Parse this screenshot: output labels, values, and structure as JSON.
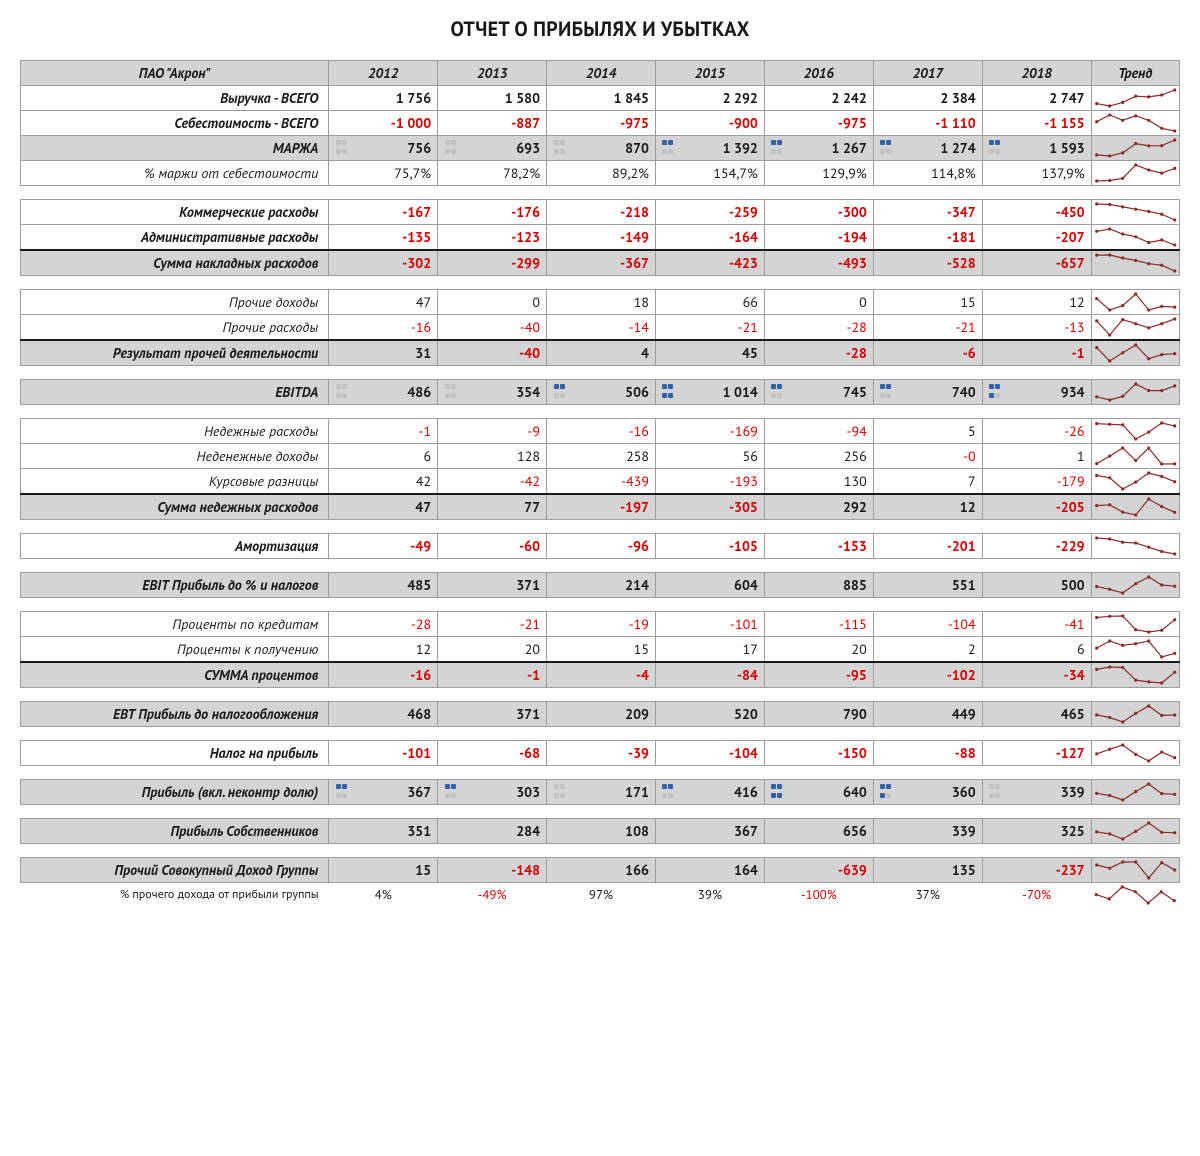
{
  "title": "ОТЧЕТ О ПРИБЫЛЯХ И УБЫТКАХ",
  "company": "ПАО \"Акрон\"",
  "years": [
    "2012",
    "2013",
    "2014",
    "2015",
    "2016",
    "2017",
    "2018"
  ],
  "trend_label": "Тренд",
  "colors": {
    "header_bg": "#d4d4d4",
    "border": "#9c9c9c",
    "negative": "#d40000",
    "spark_line": "#8a2a2a",
    "spark_dot": "#8a2a2a",
    "dot_on": "#3263a8",
    "dot_off": "#c2c2c2"
  },
  "dot_patterns": {
    "marzha": [
      "0000",
      "0000",
      "0000",
      "1100",
      "1100",
      "1100",
      "1100"
    ],
    "ebitda": [
      "0000",
      "0000",
      "1100",
      "1111",
      "1100",
      "1100",
      "1110"
    ],
    "pribyl": [
      "1100",
      "1100",
      "0000",
      "1100",
      "1111",
      "1110",
      "0000"
    ]
  },
  "rows": [
    {
      "type": "header"
    },
    {
      "type": "data",
      "label": "Выручка - ВСЕГО",
      "bold": true,
      "vals": [
        "1 756",
        "1 580",
        "1 845",
        "2 292",
        "2 242",
        "2 384",
        "2 747"
      ],
      "spark": [
        1756,
        1580,
        1845,
        2292,
        2242,
        2384,
        2747
      ]
    },
    {
      "type": "data",
      "label": "Себестоимость - ВСЕГО",
      "bold": true,
      "vals": [
        "-1 000",
        "-887",
        "-975",
        "-900",
        "-975",
        "-1 110",
        "-1 155"
      ],
      "spark": [
        -1000,
        -887,
        -975,
        -900,
        -975,
        -1110,
        -1155
      ]
    },
    {
      "type": "data",
      "label": "МАРЖА",
      "bold": true,
      "grey": true,
      "dots": "marzha",
      "vals": [
        "756",
        "693",
        "870",
        "1 392",
        "1 267",
        "1 274",
        "1 593"
      ],
      "spark": [
        756,
        693,
        870,
        1392,
        1267,
        1274,
        1593
      ]
    },
    {
      "type": "data",
      "label": "% маржи от себестоимости",
      "vals": [
        "75,7%",
        "78,2%",
        "89,2%",
        "154,7%",
        "129,9%",
        "114,8%",
        "137,9%"
      ],
      "spark": [
        75.7,
        78.2,
        89.2,
        154.7,
        129.9,
        114.8,
        137.9
      ]
    },
    {
      "type": "spacer"
    },
    {
      "type": "data",
      "label": "Коммерческие расходы",
      "bold": true,
      "vals": [
        "-167",
        "-176",
        "-218",
        "-259",
        "-300",
        "-347",
        "-450"
      ],
      "spark": [
        -167,
        -176,
        -218,
        -259,
        -300,
        -347,
        -450
      ]
    },
    {
      "type": "data",
      "label": "Административные расходы",
      "bold": true,
      "vals": [
        "-135",
        "-123",
        "-149",
        "-164",
        "-194",
        "-181",
        "-207"
      ],
      "spark": [
        -135,
        -123,
        -149,
        -164,
        -194,
        -181,
        -207
      ]
    },
    {
      "type": "data",
      "label": "Сумма накладных расходов",
      "bold": true,
      "grey": true,
      "thick": true,
      "vals": [
        "-302",
        "-299",
        "-367",
        "-423",
        "-493",
        "-528",
        "-657"
      ],
      "spark": [
        -302,
        -299,
        -367,
        -423,
        -493,
        -528,
        -657
      ]
    },
    {
      "type": "spacer"
    },
    {
      "type": "data",
      "label": "Прочие доходы",
      "vals": [
        "47",
        "0",
        "18",
        "66",
        "0",
        "15",
        "12"
      ],
      "spark": [
        47,
        0,
        18,
        66,
        0,
        15,
        12
      ]
    },
    {
      "type": "data",
      "label": "Прочие расходы",
      "vals": [
        "-16",
        "-40",
        "-14",
        "-21",
        "-28",
        "-21",
        "-13"
      ],
      "spark": [
        -16,
        -40,
        -14,
        -21,
        -28,
        -21,
        -13
      ]
    },
    {
      "type": "data",
      "label": "Результат прочей деятельности",
      "bold": true,
      "grey": true,
      "thick": true,
      "vals": [
        "31",
        "-40",
        "4",
        "45",
        "-28",
        "-6",
        "-1"
      ],
      "spark": [
        31,
        -40,
        4,
        45,
        -28,
        -6,
        -1
      ]
    },
    {
      "type": "spacer"
    },
    {
      "type": "data",
      "label": "EBITDA",
      "bold": true,
      "grey": true,
      "dots": "ebitda",
      "vals": [
        "486",
        "354",
        "506",
        "1 014",
        "745",
        "740",
        "934"
      ],
      "spark": [
        486,
        354,
        506,
        1014,
        745,
        740,
        934
      ]
    },
    {
      "type": "spacer"
    },
    {
      "type": "data",
      "label": "Недежные расходы",
      "vals": [
        "-1",
        "-9",
        "-16",
        "-169",
        "-94",
        "5",
        "-26"
      ],
      "spark": [
        -1,
        -9,
        -16,
        -169,
        -94,
        5,
        -26
      ]
    },
    {
      "type": "data",
      "label": "Неденежные доходы",
      "vals": [
        "6",
        "128",
        "258",
        "56",
        "256",
        "-0",
        "1"
      ],
      "spark": [
        6,
        128,
        258,
        56,
        256,
        0,
        1
      ]
    },
    {
      "type": "data",
      "label": "Курсовые разницы",
      "vals": [
        "42",
        "-42",
        "-439",
        "-193",
        "130",
        "7",
        "-179"
      ],
      "spark": [
        42,
        -42,
        -439,
        -193,
        130,
        7,
        -179
      ]
    },
    {
      "type": "data",
      "label": "Сумма недежных расходов",
      "bold": true,
      "grey": true,
      "thick": true,
      "vals": [
        "47",
        "77",
        "-197",
        "-305",
        "292",
        "12",
        "-205"
      ],
      "spark": [
        47,
        77,
        -197,
        -305,
        292,
        12,
        -205
      ]
    },
    {
      "type": "spacer"
    },
    {
      "type": "data",
      "label": "Амортизация",
      "bold": true,
      "vals": [
        "-49",
        "-60",
        "-96",
        "-105",
        "-153",
        "-201",
        "-229"
      ],
      "spark": [
        -49,
        -60,
        -96,
        -105,
        -153,
        -201,
        -229
      ]
    },
    {
      "type": "spacer"
    },
    {
      "type": "data",
      "label": "EBIT Прибыль до % и налогов",
      "bold": true,
      "grey": true,
      "vals": [
        "485",
        "371",
        "214",
        "604",
        "885",
        "551",
        "500"
      ],
      "spark": [
        485,
        371,
        214,
        604,
        885,
        551,
        500
      ]
    },
    {
      "type": "spacer"
    },
    {
      "type": "data",
      "label": "Проценты по кредитам",
      "vals": [
        "-28",
        "-21",
        "-19",
        "-101",
        "-115",
        "-104",
        "-41"
      ],
      "spark": [
        -28,
        -21,
        -19,
        -101,
        -115,
        -104,
        -41
      ]
    },
    {
      "type": "data",
      "label": "Проценты к получению",
      "vals": [
        "12",
        "20",
        "15",
        "17",
        "20",
        "2",
        "6"
      ],
      "spark": [
        12,
        20,
        15,
        17,
        20,
        2,
        6
      ]
    },
    {
      "type": "data",
      "label": "СУММА процентов",
      "bold": true,
      "grey": true,
      "thick": true,
      "vals": [
        "-16",
        "-1",
        "-4",
        "-84",
        "-95",
        "-102",
        "-34"
      ],
      "spark": [
        -16,
        -1,
        -4,
        -84,
        -95,
        -102,
        -34
      ]
    },
    {
      "type": "spacer"
    },
    {
      "type": "data",
      "label": "EBT Прибыль до налогообложения",
      "bold": true,
      "grey": true,
      "vals": [
        "468",
        "371",
        "209",
        "520",
        "790",
        "449",
        "465"
      ],
      "spark": [
        468,
        371,
        209,
        520,
        790,
        449,
        465
      ]
    },
    {
      "type": "spacer"
    },
    {
      "type": "data",
      "label": "Налог на прибыль",
      "bold": true,
      "vals": [
        "-101",
        "-68",
        "-39",
        "-104",
        "-150",
        "-88",
        "-127"
      ],
      "spark": [
        -101,
        -68,
        -39,
        -104,
        -150,
        -88,
        -127
      ]
    },
    {
      "type": "spacer"
    },
    {
      "type": "data",
      "label": "Прибыль  (вкл. неконтр долю)",
      "bold": true,
      "grey": true,
      "dots": "pribyl",
      "vals": [
        "367",
        "303",
        "171",
        "416",
        "640",
        "360",
        "339"
      ],
      "spark": [
        367,
        303,
        171,
        416,
        640,
        360,
        339
      ]
    },
    {
      "type": "spacer"
    },
    {
      "type": "data",
      "label": "Прибыль Собственников",
      "bold": true,
      "grey": true,
      "vals": [
        "351",
        "284",
        "108",
        "367",
        "656",
        "339",
        "325"
      ],
      "spark": [
        351,
        284,
        108,
        367,
        656,
        339,
        325
      ]
    },
    {
      "type": "spacer"
    },
    {
      "type": "data",
      "label": "Прочий Совокупный Доход Группы",
      "bold": true,
      "grey": true,
      "vals": [
        "15",
        "-148",
        "166",
        "164",
        "-639",
        "135",
        "-237"
      ],
      "spark": [
        15,
        -148,
        166,
        164,
        -639,
        135,
        -237
      ]
    },
    {
      "type": "foot",
      "label": "% прочего дохода от прибыли группы",
      "vals": [
        "4%",
        "-49%",
        "97%",
        "39%",
        "-100%",
        "37%",
        "-70%"
      ],
      "spark": [
        4,
        -49,
        97,
        39,
        -100,
        37,
        -70
      ]
    }
  ]
}
